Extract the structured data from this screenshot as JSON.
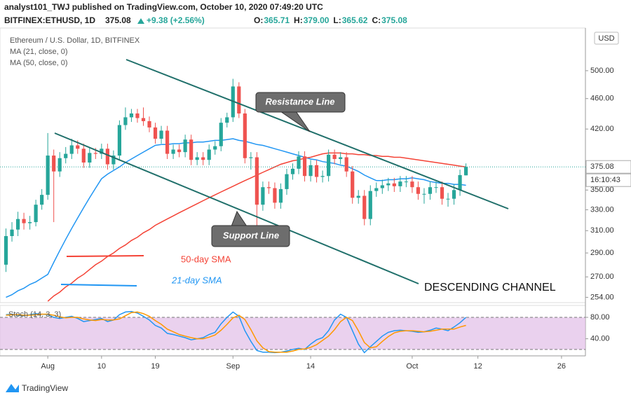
{
  "chart_data": {
    "type": "candlestick",
    "header": {
      "byline": "analyst101_TWJ published on TradingView.com, October 10, 2020 07:49:20 UTC",
      "symbol": "BITFINEX:ETHUSD, 1D",
      "price": "375.08",
      "change": "+9.38 (+2.56%)",
      "ohlc": [
        {
          "label": "O:",
          "value": "365.71"
        },
        {
          "label": "H:",
          "value": "379.00"
        },
        {
          "label": "L:",
          "value": "365.62"
        },
        {
          "label": "C:",
          "value": "375.08"
        }
      ]
    },
    "title": "Ethereum / U.S. Dollar, 1D, BITFINEX",
    "currency": "USD",
    "countdown": "16:10:43",
    "log_scale": true,
    "grid": false,
    "up_color": "#26a69a",
    "down_color": "#ef5350",
    "price_line_color": "#26a69a",
    "xlim": [
      "2020-07-24",
      "2020-10-30"
    ],
    "xticks": [
      {
        "value": "2020-08-01",
        "label": "Aug"
      },
      {
        "value": "2020-08-10",
        "label": "10"
      },
      {
        "value": "2020-08-19",
        "label": "19"
      },
      {
        "value": "2020-09-01",
        "label": "Sep"
      },
      {
        "value": "2020-09-14",
        "label": "14"
      },
      {
        "value": "2020-10-01",
        "label": "Oct"
      },
      {
        "value": "2020-10-12",
        "label": "12"
      },
      {
        "value": "2020-10-26",
        "label": "26"
      }
    ],
    "ylim": [
      250,
      568
    ],
    "yticks": [
      {
        "value": 254,
        "label": "254.00"
      },
      {
        "value": 270,
        "label": "270.00"
      },
      {
        "value": 290,
        "label": "290.00"
      },
      {
        "value": 310,
        "label": "310.00"
      },
      {
        "value": 330,
        "label": "330.00"
      },
      {
        "value": 350,
        "label": "350.00"
      },
      {
        "value": 420,
        "label": "420.00"
      },
      {
        "value": 460,
        "label": "460.00"
      },
      {
        "value": 500,
        "label": "500.00"
      }
    ],
    "x": [
      "2020-07-25",
      "2020-07-26",
      "2020-07-27",
      "2020-07-28",
      "2020-07-29",
      "2020-07-30",
      "2020-07-31",
      "2020-08-01",
      "2020-08-02",
      "2020-08-03",
      "2020-08-04",
      "2020-08-05",
      "2020-08-06",
      "2020-08-07",
      "2020-08-08",
      "2020-08-09",
      "2020-08-10",
      "2020-08-11",
      "2020-08-12",
      "2020-08-13",
      "2020-08-14",
      "2020-08-15",
      "2020-08-16",
      "2020-08-17",
      "2020-08-18",
      "2020-08-19",
      "2020-08-20",
      "2020-08-21",
      "2020-08-22",
      "2020-08-23",
      "2020-08-24",
      "2020-08-25",
      "2020-08-26",
      "2020-08-27",
      "2020-08-28",
      "2020-08-29",
      "2020-08-30",
      "2020-08-31",
      "2020-09-01",
      "2020-09-02",
      "2020-09-03",
      "2020-09-04",
      "2020-09-05",
      "2020-09-06",
      "2020-09-07",
      "2020-09-08",
      "2020-09-09",
      "2020-09-10",
      "2020-09-11",
      "2020-09-12",
      "2020-09-13",
      "2020-09-14",
      "2020-09-15",
      "2020-09-16",
      "2020-09-17",
      "2020-09-18",
      "2020-09-19",
      "2020-09-20",
      "2020-09-21",
      "2020-09-22",
      "2020-09-23",
      "2020-09-24",
      "2020-09-25",
      "2020-09-26",
      "2020-09-27",
      "2020-09-28",
      "2020-09-29",
      "2020-09-30",
      "2020-10-01",
      "2020-10-02",
      "2020-10-03",
      "2020-10-04",
      "2020-10-05",
      "2020-10-06",
      "2020-10-07",
      "2020-10-08",
      "2020-10-09",
      "2020-10-10"
    ],
    "open": [
      280,
      305,
      311,
      321,
      317,
      318,
      335,
      345,
      388,
      370,
      385,
      390,
      400,
      396,
      380,
      391,
      390,
      396,
      378,
      388,
      425,
      435,
      440,
      434,
      430,
      422,
      408,
      418,
      390,
      395,
      392,
      407,
      383,
      386,
      383,
      395,
      399,
      428,
      435,
      477,
      440,
      385,
      386,
      335,
      353,
      352,
      337,
      351,
      367,
      373,
      387,
      365,
      377,
      364,
      365,
      389,
      384,
      386,
      370,
      342,
      344,
      321,
      349,
      352,
      355,
      357,
      354,
      359,
      359,
      353,
      346,
      346,
      353,
      353,
      341,
      341,
      350,
      365.71
    ],
    "high": [
      312,
      318,
      328,
      327,
      324,
      340,
      351,
      415,
      395,
      392,
      398,
      408,
      406,
      402,
      397,
      397,
      402,
      402,
      394,
      431,
      448,
      446,
      446,
      448,
      436,
      428,
      424,
      424,
      401,
      401,
      413,
      413,
      392,
      392,
      401,
      405,
      434,
      441,
      488,
      483,
      446,
      392,
      392,
      359,
      359,
      358,
      357,
      373,
      379,
      393,
      393,
      383,
      383,
      371,
      395,
      395,
      392,
      392,
      376,
      350,
      350,
      355,
      358,
      361,
      363,
      363,
      365,
      365,
      365,
      359,
      352,
      359,
      359,
      359,
      347,
      356,
      372,
      379
    ],
    "low": [
      274,
      300,
      305,
      311,
      311,
      314,
      330,
      340,
      318,
      364,
      379,
      384,
      390,
      374,
      374,
      384,
      384,
      372,
      372,
      382,
      419,
      429,
      428,
      424,
      416,
      402,
      402,
      384,
      384,
      386,
      386,
      377,
      377,
      377,
      377,
      389,
      393,
      422,
      429,
      434,
      379,
      372,
      310,
      329,
      346,
      331,
      331,
      345,
      361,
      367,
      359,
      359,
      358,
      358,
      359,
      378,
      378,
      364,
      336,
      336,
      315,
      315,
      343,
      346,
      349,
      348,
      348,
      353,
      347,
      340,
      336,
      340,
      347,
      335,
      333,
      335,
      344,
      365.62
    ],
    "close": [
      305,
      311,
      321,
      317,
      318,
      335,
      345,
      388,
      370,
      385,
      390,
      400,
      396,
      380,
      391,
      390,
      396,
      378,
      388,
      425,
      435,
      440,
      434,
      430,
      422,
      408,
      418,
      390,
      395,
      392,
      407,
      383,
      386,
      383,
      395,
      399,
      428,
      435,
      477,
      440,
      385,
      386,
      335,
      353,
      352,
      337,
      351,
      367,
      373,
      387,
      365,
      377,
      364,
      365,
      389,
      384,
      386,
      370,
      342,
      344,
      321,
      349,
      352,
      355,
      357,
      354,
      359,
      359,
      353,
      346,
      346,
      353,
      353,
      341,
      341,
      350,
      366,
      375.08
    ],
    "series": [
      {
        "name": "MA (21, close, 0)",
        "color": "#2196f3",
        "values": [
          254,
          256,
          259,
          261,
          264,
          266,
          269,
          272,
          282,
          292,
          302,
          312,
          322,
          332,
          342,
          352,
          362,
          367,
          371,
          375,
          380,
          384,
          388,
          392,
          396,
          400,
          401,
          401,
          402,
          402,
          403,
          403,
          404,
          404,
          405,
          406,
          406,
          407,
          408,
          406,
          405,
          403,
          401,
          400,
          398,
          396,
          394,
          392,
          390,
          388,
          386,
          384,
          383,
          381,
          380,
          379,
          377,
          376,
          373,
          370,
          366,
          363,
          360,
          360,
          361,
          361,
          362,
          362,
          363,
          362,
          361,
          359,
          358,
          357,
          357,
          356,
          356,
          355
        ]
      },
      {
        "name": "MA (50, close, 0)",
        "color": "#f44336",
        "values": [
          null,
          null,
          null,
          null,
          null,
          null,
          null,
          251,
          255,
          258,
          262,
          265,
          269,
          272,
          276,
          280,
          283,
          287,
          290,
          294,
          297,
          301,
          304,
          308,
          311,
          315,
          318,
          321,
          324,
          327,
          330,
          333,
          336,
          339,
          342,
          345,
          348,
          351,
          354,
          357,
          360,
          363,
          366,
          369,
          372,
          375,
          378,
          380,
          382,
          383,
          385,
          386,
          388,
          390,
          391,
          391,
          391,
          390,
          390,
          389,
          389,
          388,
          388,
          387,
          387,
          386,
          386,
          385,
          384,
          383,
          382,
          381,
          380,
          379,
          378,
          377,
          376,
          375
        ]
      }
    ],
    "stoch": {
      "name": "Stoch (14, 3, 3)",
      "ylim": [
        8,
        101
      ],
      "yticks": [
        {
          "value": 80,
          "label": "80.00"
        },
        {
          "value": 40,
          "label": "40.00"
        }
      ],
      "bands": [
        20,
        80
      ],
      "band_color": "#e1bee7",
      "series": [
        {
          "color": "#2196f3",
          "values": [
            85,
            86,
            84,
            83,
            85,
            87,
            86,
            85,
            80,
            78,
            80,
            82,
            78,
            72,
            74,
            76,
            78,
            72,
            75,
            85,
            90,
            91,
            88,
            82,
            75,
            65,
            60,
            50,
            48,
            45,
            42,
            38,
            40,
            42,
            48,
            52,
            68,
            80,
            90,
            82,
            55,
            35,
            18,
            15,
            15,
            14,
            15,
            17,
            20,
            22,
            20,
            30,
            38,
            42,
            55,
            75,
            86,
            80,
            55,
            30,
            14,
            25,
            35,
            45,
            52,
            55,
            56,
            55,
            54,
            52,
            53,
            56,
            60,
            58,
            55,
            62,
            70,
            80
          ]
        },
        {
          "color": "#ff9800",
          "values": [
            84,
            85,
            85,
            84,
            84,
            85,
            86,
            86,
            84,
            81,
            79,
            80,
            80,
            77,
            75,
            74,
            76,
            75,
            75,
            77,
            83,
            89,
            90,
            87,
            82,
            74,
            67,
            58,
            53,
            48,
            45,
            42,
            40,
            40,
            43,
            47,
            56,
            67,
            79,
            84,
            76,
            57,
            36,
            23,
            16,
            15,
            15,
            15,
            17,
            20,
            21,
            24,
            29,
            37,
            45,
            57,
            72,
            80,
            74,
            55,
            33,
            23,
            25,
            35,
            44,
            51,
            54,
            55,
            55,
            54,
            53,
            54,
            56,
            58,
            58,
            58,
            62,
            65
          ]
        }
      ]
    },
    "annotations": {
      "resistance": "Resistance Line",
      "support": "Support Line",
      "channel": "DESCENDING CHANNEL",
      "sma50": "50-day SMA",
      "sma21": "21-day SMA"
    },
    "footer": "TradingView"
  }
}
